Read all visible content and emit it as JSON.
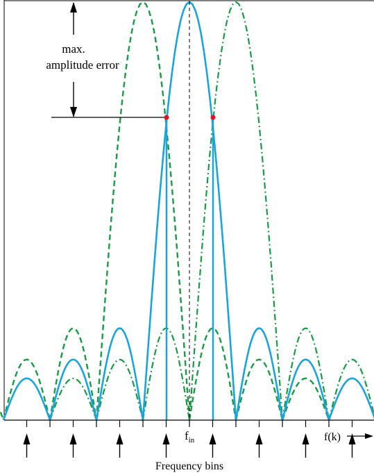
{
  "annotation": {
    "line1": "max.",
    "line2": "amplitude error"
  },
  "axis": {
    "fin_main": "f",
    "fin_sub": "in",
    "fk_label": "f(k)",
    "bins_label": "Frequency bins"
  },
  "colors": {
    "main_curve": "#1ba3dc",
    "dashed_curve": "#1a9a45",
    "dashdot_curve": "#1a9a45",
    "marker": "#e0141e",
    "axis": "#000000"
  },
  "curves": {
    "main": {
      "style": "solid",
      "main_lobe_bins": [
        -1,
        1
      ],
      "side_lobe_peaks": [
        0.22,
        0.145,
        0.1
      ]
    },
    "dashed": {
      "style": "dashed",
      "main_lobe_bins": [
        -2,
        0
      ],
      "side_lobe_peaks": [
        0.22,
        0.145,
        0.1
      ]
    },
    "dashdot": {
      "style": "dash-dot",
      "main_lobe_bins": [
        0,
        2
      ],
      "side_lobe_peaks": [
        0.22,
        0.145,
        0.1
      ]
    }
  },
  "bins": {
    "count": 8,
    "arrow_icon": "up-arrow-icon"
  }
}
